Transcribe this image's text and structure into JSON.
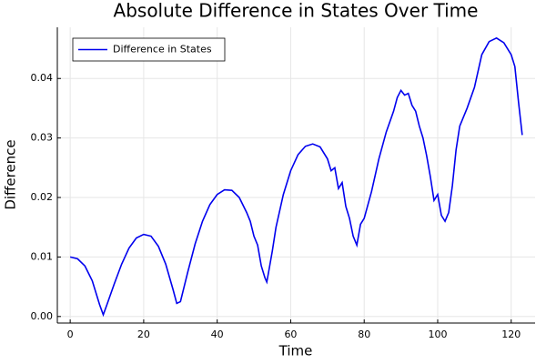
{
  "chart_data": {
    "type": "line",
    "title": "Absolute Difference in States Over Time",
    "xlabel": "Time",
    "ylabel": "Difference",
    "x": [
      0,
      2,
      4,
      6,
      8,
      9,
      10,
      12,
      14,
      16,
      18,
      20,
      22,
      24,
      26,
      28,
      29,
      30,
      32,
      34,
      36,
      38,
      40,
      42,
      44,
      46,
      48,
      49,
      50,
      51,
      52,
      53,
      53.5,
      54,
      55,
      56,
      58,
      60,
      62,
      64,
      66,
      68,
      70,
      71,
      72,
      73,
      74,
      75,
      76,
      77,
      78,
      79,
      80,
      82,
      84,
      86,
      88,
      89,
      90,
      91,
      92,
      93,
      94,
      95,
      96,
      97,
      98,
      99,
      100,
      101,
      102,
      103,
      104,
      105,
      106,
      108,
      110,
      112,
      114,
      116,
      118,
      120,
      121,
      122,
      123
    ],
    "series": [
      {
        "name": "Difference in States",
        "color": "#0000ee",
        "values": [
          0.01,
          0.0097,
          0.0085,
          0.006,
          0.002,
          0.0003,
          0.002,
          0.0055,
          0.0088,
          0.0115,
          0.0132,
          0.0138,
          0.0135,
          0.0118,
          0.0088,
          0.0045,
          0.0022,
          0.0025,
          0.0075,
          0.0122,
          0.016,
          0.0188,
          0.0205,
          0.0213,
          0.0212,
          0.02,
          0.0175,
          0.016,
          0.0135,
          0.012,
          0.0085,
          0.0065,
          0.0058,
          0.0075,
          0.011,
          0.015,
          0.0205,
          0.0245,
          0.0272,
          0.0286,
          0.029,
          0.0285,
          0.0265,
          0.0245,
          0.025,
          0.0215,
          0.0225,
          0.0185,
          0.0165,
          0.0135,
          0.012,
          0.0155,
          0.0165,
          0.021,
          0.0265,
          0.031,
          0.0345,
          0.0368,
          0.038,
          0.0372,
          0.0375,
          0.0355,
          0.0345,
          0.032,
          0.03,
          0.027,
          0.0235,
          0.0195,
          0.0205,
          0.017,
          0.016,
          0.0175,
          0.022,
          0.028,
          0.032,
          0.035,
          0.0385,
          0.044,
          0.0462,
          0.0468,
          0.046,
          0.044,
          0.042,
          0.036,
          0.0305
        ]
      }
    ],
    "xlim": [
      -3.5,
      126.5
    ],
    "ylim": [
      -0.0011,
      0.0486
    ],
    "xticks": [
      0,
      20,
      40,
      60,
      80,
      100,
      120
    ],
    "yticks": [
      {
        "value": 0,
        "label": "0.00"
      },
      {
        "value": 0.01,
        "label": "0.01"
      },
      {
        "value": 0.02,
        "label": "0.02"
      },
      {
        "value": 0.03,
        "label": "0.03"
      },
      {
        "value": 0.04,
        "label": "0.04"
      }
    ],
    "grid": true,
    "legend": "top-left"
  }
}
